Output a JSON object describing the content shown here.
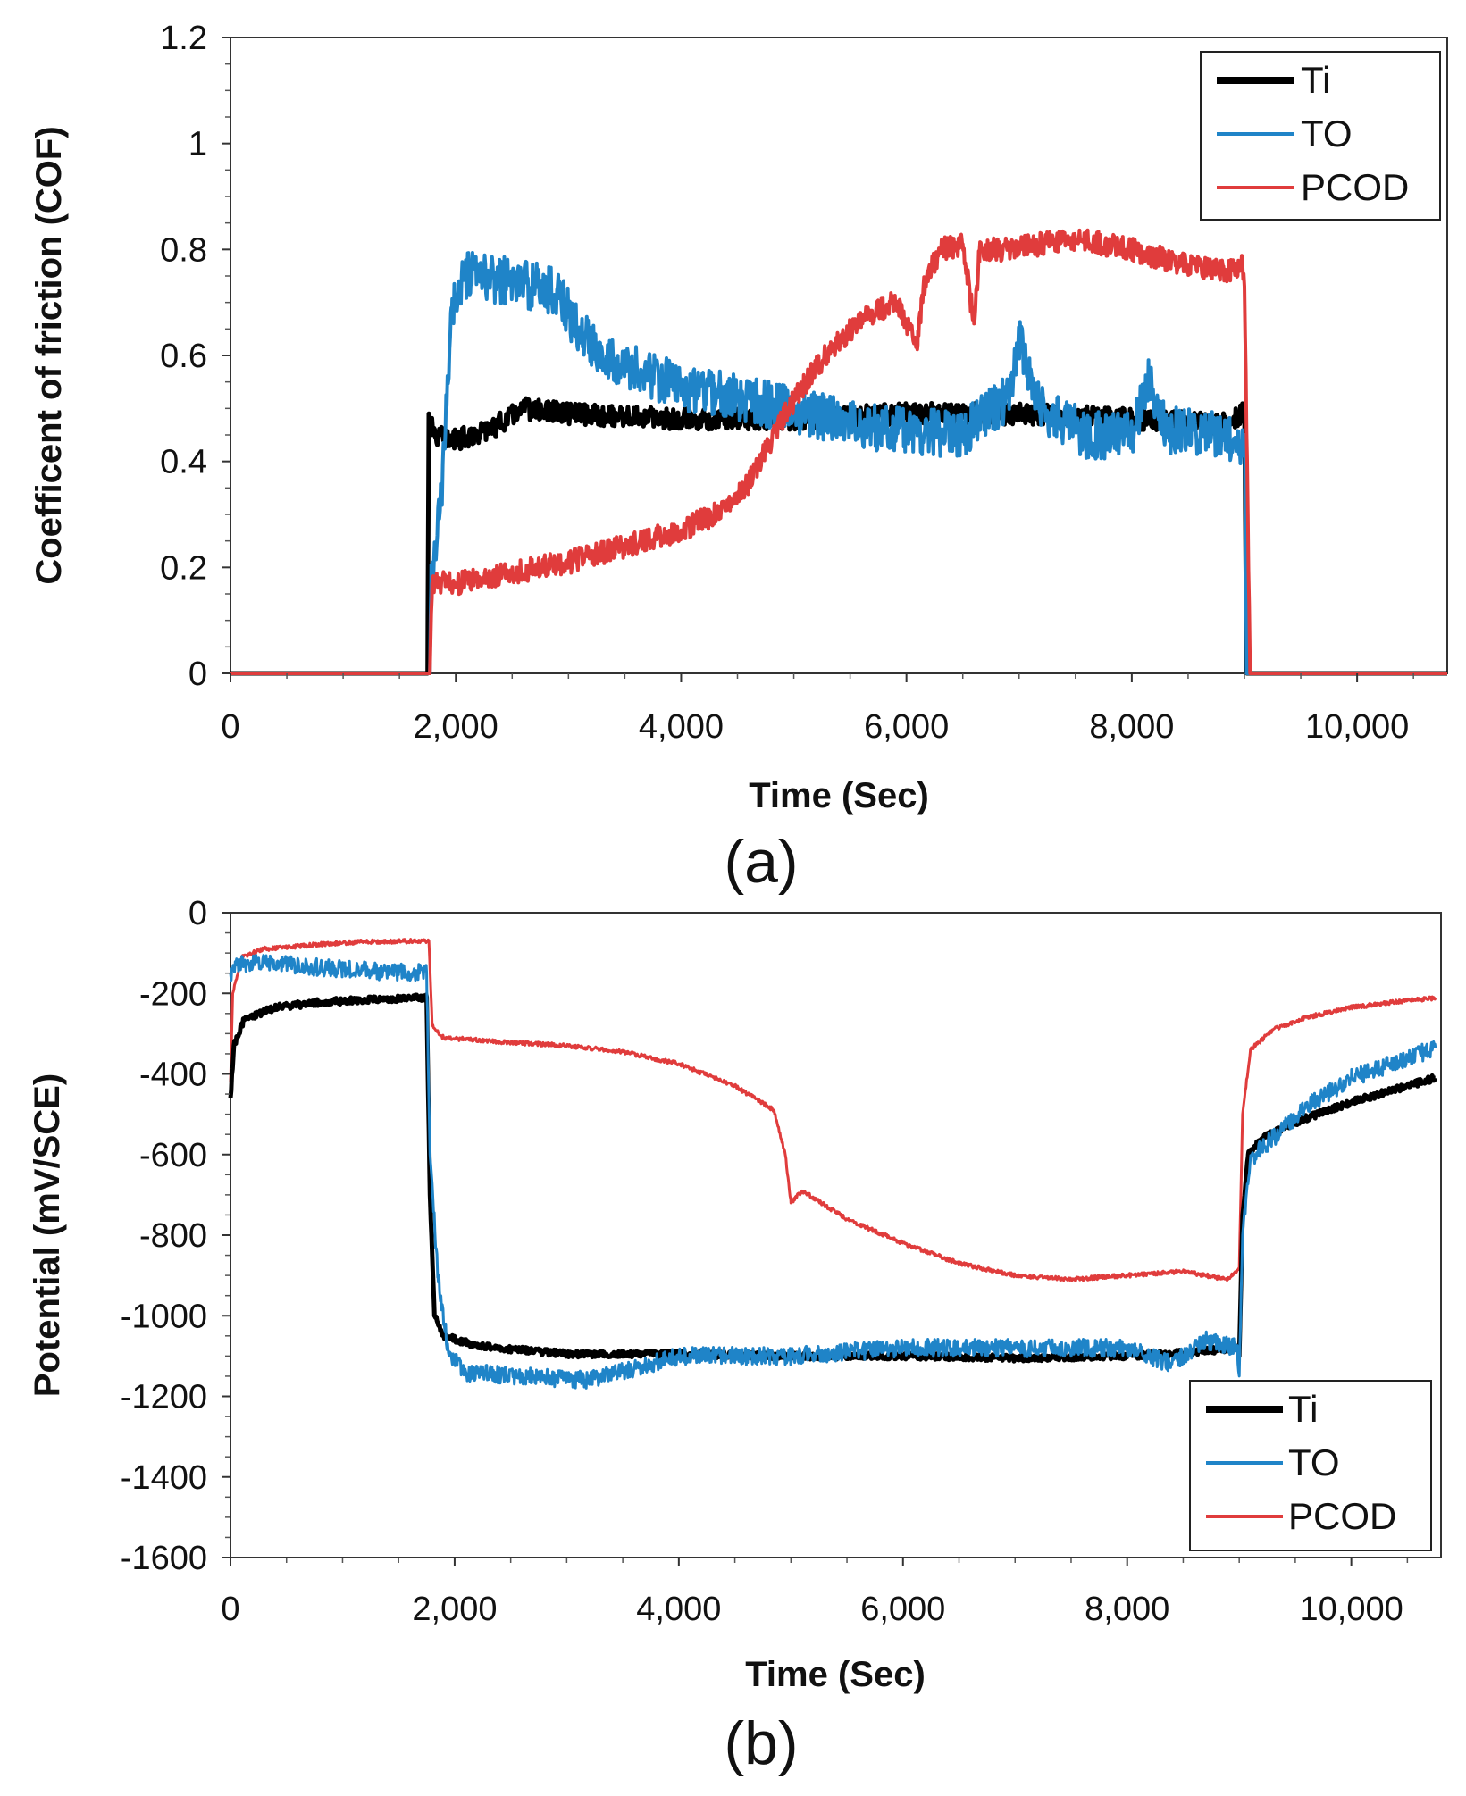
{
  "chart_data": [
    {
      "type": "line",
      "panel_label": "(a)",
      "xlabel": "Time (Sec)",
      "ylabel": "Coefficent of friction (COF)",
      "xlim": [
        0,
        10800
      ],
      "ylim": [
        0,
        1.2
      ],
      "xticks": [
        0,
        2000,
        4000,
        6000,
        8000,
        10000
      ],
      "xtick_labels": [
        "0",
        "2,000",
        "4,000",
        "6,000",
        "8,000",
        "10,000"
      ],
      "yticks": [
        0,
        0.2,
        0.4,
        0.6,
        0.8,
        1.0,
        1.2
      ],
      "ytick_labels": [
        "0",
        "0.2",
        "0.4",
        "0.6",
        "0.8",
        "1",
        "1.2"
      ],
      "legend_position": "top-right",
      "series": [
        {
          "name": "Ti",
          "color": "#000000",
          "width": 5,
          "noise": 0.02,
          "points": [
            [
              0,
              0
            ],
            [
              1750,
              0
            ],
            [
              1760,
              0.49
            ],
            [
              1800,
              0.45
            ],
            [
              2000,
              0.44
            ],
            [
              2300,
              0.46
            ],
            [
              2600,
              0.5
            ],
            [
              3000,
              0.49
            ],
            [
              4000,
              0.48
            ],
            [
              5000,
              0.48
            ],
            [
              6000,
              0.49
            ],
            [
              7000,
              0.49
            ],
            [
              8000,
              0.48
            ],
            [
              8800,
              0.47
            ],
            [
              8980,
              0.49
            ],
            [
              9000,
              0.49
            ],
            [
              9020,
              0
            ],
            [
              10800,
              0
            ]
          ]
        },
        {
          "name": "TO",
          "color": "#1f84c8",
          "width": 4,
          "noise": 0.045,
          "points": [
            [
              0,
              0
            ],
            [
              1770,
              0
            ],
            [
              1780,
              0.16
            ],
            [
              1880,
              0.35
            ],
            [
              1960,
              0.69
            ],
            [
              2100,
              0.75
            ],
            [
              2500,
              0.74
            ],
            [
              2900,
              0.72
            ],
            [
              3100,
              0.64
            ],
            [
              3500,
              0.58
            ],
            [
              4000,
              0.54
            ],
            [
              4500,
              0.52
            ],
            [
              5000,
              0.5
            ],
            [
              5500,
              0.47
            ],
            [
              6000,
              0.46
            ],
            [
              6500,
              0.45
            ],
            [
              6900,
              0.52
            ],
            [
              7000,
              0.63
            ],
            [
              7200,
              0.5
            ],
            [
              7600,
              0.45
            ],
            [
              8000,
              0.45
            ],
            [
              8150,
              0.56
            ],
            [
              8300,
              0.46
            ],
            [
              8800,
              0.45
            ],
            [
              8980,
              0.44
            ],
            [
              9000,
              0.45
            ],
            [
              9020,
              0
            ],
            [
              10800,
              0
            ]
          ]
        },
        {
          "name": "PCOD",
          "color": "#e03c3c",
          "width": 4,
          "noise": 0.022,
          "points": [
            [
              0,
              0
            ],
            [
              1770,
              0
            ],
            [
              1790,
              0.17
            ],
            [
              2000,
              0.17
            ],
            [
              2500,
              0.19
            ],
            [
              3000,
              0.21
            ],
            [
              3500,
              0.24
            ],
            [
              4000,
              0.27
            ],
            [
              4300,
              0.3
            ],
            [
              4600,
              0.36
            ],
            [
              4900,
              0.48
            ],
            [
              5200,
              0.58
            ],
            [
              5600,
              0.67
            ],
            [
              5900,
              0.7
            ],
            [
              6100,
              0.62
            ],
            [
              6150,
              0.73
            ],
            [
              6300,
              0.8
            ],
            [
              6500,
              0.81
            ],
            [
              6600,
              0.66
            ],
            [
              6650,
              0.8
            ],
            [
              6900,
              0.8
            ],
            [
              7500,
              0.82
            ],
            [
              8000,
              0.8
            ],
            [
              8500,
              0.77
            ],
            [
              8900,
              0.76
            ],
            [
              8980,
              0.77
            ],
            [
              9000,
              0.73
            ],
            [
              9050,
              0
            ],
            [
              10800,
              0
            ]
          ]
        }
      ]
    },
    {
      "type": "line",
      "panel_label": "(b)",
      "xlabel": "Time (Sec)",
      "ylabel": "Potential (mV/SCE)",
      "xlim": [
        0,
        10800
      ],
      "ylim": [
        -1600,
        0
      ],
      "xticks": [
        0,
        2000,
        4000,
        6000,
        8000,
        10000
      ],
      "xtick_labels": [
        "0",
        "2,000",
        "4,000",
        "6,000",
        "8,000",
        "10,000"
      ],
      "yticks": [
        0,
        -200,
        -400,
        -600,
        -800,
        -1000,
        -1200,
        -1400,
        -1600
      ],
      "ytick_labels": [
        "0",
        "-200",
        "-400",
        "-600",
        "-800",
        "-1000",
        "-1200",
        "-1400",
        "-1600"
      ],
      "legend_position": "bottom-right",
      "series": [
        {
          "name": "Ti",
          "color": "#000000",
          "width": 5,
          "noise": 8,
          "points": [
            [
              0,
              -460
            ],
            [
              30,
              -330
            ],
            [
              120,
              -265
            ],
            [
              400,
              -235
            ],
            [
              800,
              -222
            ],
            [
              1200,
              -216
            ],
            [
              1750,
              -210
            ],
            [
              1780,
              -700
            ],
            [
              1820,
              -1000
            ],
            [
              1900,
              -1050
            ],
            [
              2200,
              -1075
            ],
            [
              2600,
              -1085
            ],
            [
              3000,
              -1095
            ],
            [
              4000,
              -1095
            ],
            [
              5000,
              -1100
            ],
            [
              6000,
              -1100
            ],
            [
              7000,
              -1105
            ],
            [
              8000,
              -1100
            ],
            [
              8600,
              -1090
            ],
            [
              8980,
              -1080
            ],
            [
              9000,
              -1100
            ],
            [
              9030,
              -750
            ],
            [
              9080,
              -600
            ],
            [
              9200,
              -560
            ],
            [
              9500,
              -520
            ],
            [
              10000,
              -470
            ],
            [
              10500,
              -430
            ],
            [
              10750,
              -410
            ]
          ]
        },
        {
          "name": "TO",
          "color": "#1f84c8",
          "width": 3,
          "noise": 22,
          "points": [
            [
              0,
              -150
            ],
            [
              60,
              -130
            ],
            [
              300,
              -125
            ],
            [
              800,
              -135
            ],
            [
              1300,
              -145
            ],
            [
              1750,
              -150
            ],
            [
              1780,
              -600
            ],
            [
              1850,
              -900
            ],
            [
              1950,
              -1100
            ],
            [
              2100,
              -1140
            ],
            [
              2600,
              -1150
            ],
            [
              3200,
              -1160
            ],
            [
              3600,
              -1130
            ],
            [
              4000,
              -1100
            ],
            [
              5000,
              -1100
            ],
            [
              6000,
              -1080
            ],
            [
              7000,
              -1080
            ],
            [
              8000,
              -1080
            ],
            [
              8400,
              -1120
            ],
            [
              8700,
              -1060
            ],
            [
              8980,
              -1080
            ],
            [
              9000,
              -1150
            ],
            [
              9030,
              -800
            ],
            [
              9100,
              -610
            ],
            [
              9300,
              -560
            ],
            [
              9600,
              -480
            ],
            [
              10000,
              -410
            ],
            [
              10500,
              -360
            ],
            [
              10750,
              -335
            ]
          ]
        },
        {
          "name": "PCOD",
          "color": "#e03c3c",
          "width": 3,
          "noise": 5,
          "points": [
            [
              0,
              -420
            ],
            [
              20,
              -200
            ],
            [
              100,
              -110
            ],
            [
              300,
              -90
            ],
            [
              800,
              -78
            ],
            [
              1200,
              -72
            ],
            [
              1770,
              -70
            ],
            [
              1800,
              -280
            ],
            [
              1900,
              -310
            ],
            [
              2400,
              -320
            ],
            [
              3000,
              -330
            ],
            [
              3500,
              -345
            ],
            [
              4000,
              -375
            ],
            [
              4500,
              -430
            ],
            [
              4850,
              -490
            ],
            [
              4950,
              -600
            ],
            [
              5000,
              -720
            ],
            [
              5100,
              -690
            ],
            [
              5500,
              -760
            ],
            [
              6000,
              -820
            ],
            [
              6500,
              -870
            ],
            [
              7000,
              -900
            ],
            [
              7500,
              -910
            ],
            [
              8000,
              -900
            ],
            [
              8500,
              -890
            ],
            [
              8900,
              -910
            ],
            [
              9000,
              -880
            ],
            [
              9030,
              -500
            ],
            [
              9100,
              -340
            ],
            [
              9300,
              -290
            ],
            [
              9600,
              -260
            ],
            [
              10000,
              -235
            ],
            [
              10500,
              -218
            ],
            [
              10750,
              -212
            ]
          ]
        }
      ]
    }
  ]
}
